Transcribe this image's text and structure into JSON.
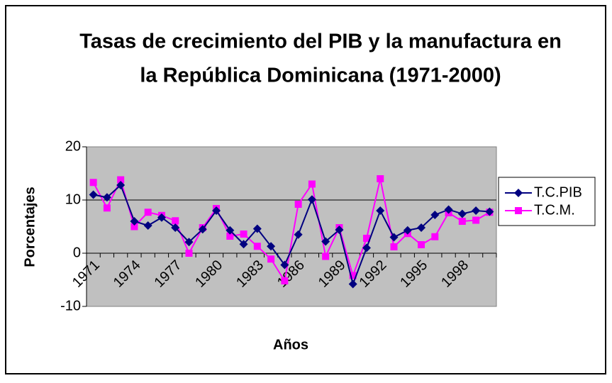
{
  "chart_data": {
    "type": "line",
    "title": [
      "Tasas de crecimiento del PIB y la manufactura en",
      "la República Dominicana (1971-2000)"
    ],
    "x_label": "Años",
    "y_label": "Porcentajes",
    "categories": [
      "1971",
      null,
      null,
      "1974",
      null,
      null,
      "1977",
      null,
      null,
      "1980",
      null,
      null,
      "1983",
      null,
      null,
      "1986",
      null,
      null,
      "1989",
      null,
      null,
      "1992",
      null,
      null,
      "1995",
      null,
      null,
      "1998",
      null,
      null
    ],
    "series": [
      {
        "name": "T.C.PIB",
        "color": "#000080",
        "marker": "diamond",
        "values": [
          11,
          10.5,
          12.8,
          6,
          5.2,
          6.7,
          4.8,
          2.1,
          4.5,
          8,
          4.3,
          1.7,
          4.6,
          1.3,
          -2.2,
          3.5,
          10.1,
          2.2,
          4.4,
          -5.8,
          1,
          8,
          3,
          4.3,
          4.8,
          7.2,
          8.2,
          7.4,
          8,
          7.8
        ]
      },
      {
        "name": "T.C.M.",
        "color": "#ff00ff",
        "marker": "square",
        "values": [
          13.3,
          8.5,
          13.8,
          5,
          7.7,
          7.1,
          6.1,
          0,
          4.8,
          8.4,
          3.2,
          3.6,
          1.3,
          -1.1,
          -5.2,
          9.2,
          13,
          -0.6,
          4.8,
          -4.2,
          2.8,
          14,
          1.2,
          3.7,
          1.6,
          3.1,
          7.6,
          6,
          6.2,
          7.7
        ]
      }
    ],
    "ylim": [
      -10,
      20
    ],
    "yticks": [
      -10,
      0,
      10,
      20
    ],
    "grid": true,
    "legend": "right"
  }
}
